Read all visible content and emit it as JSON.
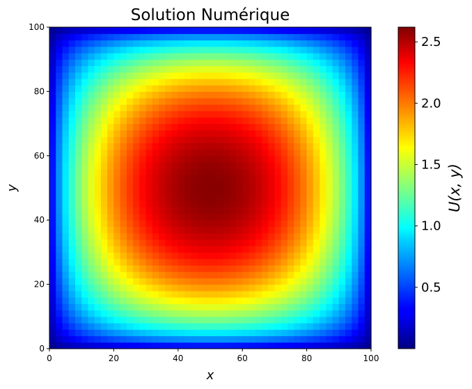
{
  "chart_data": {
    "type": "heatmap",
    "title": "Solution Numérique",
    "xlabel": "x",
    "ylabel": "y",
    "xlim": [
      0,
      100
    ],
    "ylim": [
      0,
      100
    ],
    "xticks": [
      "0",
      "20",
      "40",
      "60",
      "80",
      "100"
    ],
    "yticks": [
      "0",
      "20",
      "40",
      "60",
      "80",
      "100"
    ],
    "colormap": "jet",
    "colorbar": {
      "label": "U(x, y)",
      "range": [
        0,
        2.62
      ],
      "ticks": [
        "0.5",
        "1.0",
        "1.5",
        "2.0",
        "2.5"
      ],
      "tick_values": [
        0.5,
        1.0,
        1.5,
        2.0,
        2.5
      ]
    },
    "field": {
      "description_of_values": "U is ~0 on boundary, peaks near center",
      "peak_value": 2.6,
      "peak_location": [
        50,
        50
      ],
      "boundary_value": 0.0,
      "grid_resolution": 50
    },
    "grid": false,
    "legend": "none"
  }
}
